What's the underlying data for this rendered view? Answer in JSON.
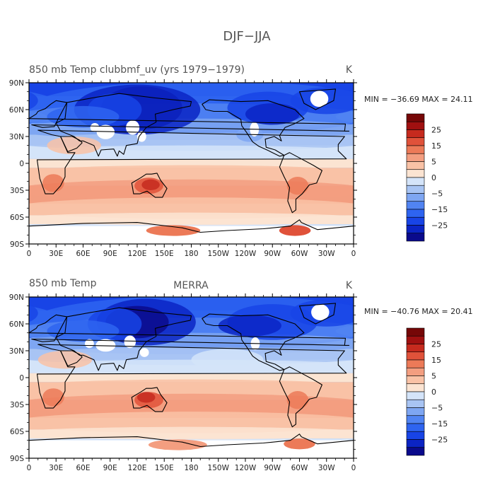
{
  "figure": {
    "title": "DJF−JJA",
    "units": "K"
  },
  "panels": [
    {
      "left_title": "850 mb Temp clubbmf_uv (yrs 1979−1979)",
      "center_title": "",
      "units": "K",
      "stats": "MIN = −36.69  MAX =   24.11"
    },
    {
      "left_title": "850 mb Temp",
      "center_title": "MERRA",
      "units": "K",
      "stats": "MIN = −40.76  MAX =   20.41"
    }
  ],
  "axes": {
    "lat_ticks": [
      "90N",
      "60N",
      "30N",
      "0",
      "30S",
      "60S",
      "90S"
    ],
    "lon_ticks": [
      "0",
      "30E",
      "60E",
      "90E",
      "120E",
      "150E",
      "180",
      "150W",
      "120W",
      "90W",
      "60W",
      "30W",
      "0"
    ]
  },
  "colorbar": {
    "labels": [
      "25",
      "15",
      "5",
      "0",
      "−5",
      "−15",
      "−25"
    ],
    "label_levels": [
      25,
      15,
      5,
      0,
      -5,
      -15,
      -25
    ],
    "levels": [
      -30,
      -25,
      -20,
      -15,
      -10,
      -5,
      -2,
      0,
      2,
      5,
      10,
      15,
      20,
      25,
      30
    ],
    "colors": [
      "#0a0a8c",
      "#0b24c4",
      "#1844e6",
      "#2e64f0",
      "#5184f2",
      "#7ea6f2",
      "#a8c4f3",
      "#d4e4f9",
      "#fbe4d2",
      "#f9c2a6",
      "#f39e80",
      "#ec7a58",
      "#e0523a",
      "#c62a1e",
      "#a01010",
      "#760707"
    ]
  },
  "map_colors": {
    "no_data": "#ffffff",
    "coastline": "#000000"
  }
}
